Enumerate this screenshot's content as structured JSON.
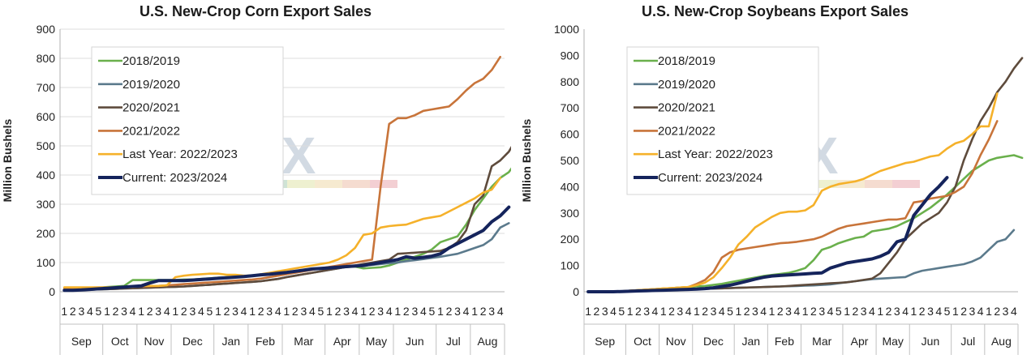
{
  "watermark_text": "neX",
  "chart_data": [
    {
      "type": "line",
      "title": "U.S. New-Crop Corn Export Sales",
      "ylabel": "Million Bushels",
      "xlabel": "",
      "ylim": [
        0,
        900
      ],
      "yticks": [
        "0",
        "100",
        "200",
        "300",
        "400",
        "500",
        "600",
        "700",
        "800",
        "900"
      ],
      "months": [
        "Sep",
        "Oct",
        "Nov",
        "Dec",
        "Jan",
        "Feb",
        "Mar",
        "Apr",
        "May",
        "Jun",
        "Jul",
        "Aug"
      ],
      "week_labels": [
        "1",
        "2",
        "3",
        "4",
        "5",
        "1",
        "2",
        "3",
        "4",
        "1",
        "2",
        "3",
        "4",
        "1",
        "2",
        "3",
        "4",
        "5",
        "1",
        "2",
        "3",
        "4",
        "1",
        "2",
        "3",
        "4",
        "1",
        "2",
        "3",
        "4",
        "5",
        "1",
        "2",
        "3",
        "4",
        "1",
        "2",
        "3",
        "4",
        "1",
        "2",
        "3",
        "4",
        "5",
        "1",
        "2",
        "3",
        "4",
        "1",
        "2",
        "3",
        "4"
      ],
      "month_week_counts": [
        5,
        4,
        4,
        5,
        4,
        4,
        5,
        4,
        4,
        5,
        4,
        4
      ],
      "grid": true,
      "legend_position": "top-left",
      "series": [
        {
          "name": "2018/2019",
          "color": "#6ab04c",
          "values": [
            10,
            10,
            10,
            12,
            14,
            16,
            18,
            20,
            40,
            40,
            40,
            40,
            40,
            40,
            42,
            42,
            44,
            46,
            48,
            50,
            52,
            54,
            56,
            58,
            60,
            62,
            66,
            70,
            74,
            78,
            80,
            82,
            84,
            85,
            86,
            80,
            82,
            84,
            90,
            100,
            110,
            120,
            130,
            145,
            170,
            180,
            190,
            230,
            280,
            320,
            360,
            390,
            410,
            450
          ]
        },
        {
          "name": "2019/2020",
          "color": "#5b7a8c",
          "values": [
            5,
            5,
            6,
            7,
            8,
            9,
            10,
            11,
            12,
            13,
            14,
            15,
            16,
            17,
            18,
            20,
            22,
            24,
            26,
            28,
            30,
            32,
            34,
            36,
            40,
            44,
            50,
            55,
            60,
            65,
            70,
            75,
            80,
            85,
            88,
            90,
            92,
            95,
            98,
            100,
            105,
            108,
            112,
            116,
            120,
            125,
            130,
            140,
            150,
            160,
            180,
            220,
            235
          ]
        },
        {
          "name": "2020/2021",
          "color": "#5e4b3c",
          "values": [
            5,
            5,
            6,
            7,
            8,
            9,
            10,
            11,
            12,
            13,
            14,
            15,
            16,
            17,
            18,
            20,
            22,
            24,
            26,
            28,
            30,
            32,
            34,
            36,
            40,
            44,
            50,
            55,
            60,
            65,
            70,
            75,
            80,
            85,
            90,
            95,
            100,
            105,
            110,
            130,
            132,
            134,
            136,
            138,
            140,
            150,
            170,
            210,
            300,
            330,
            430,
            450,
            480,
            530,
            620
          ]
        },
        {
          "name": "2021/2022",
          "color": "#c8743a",
          "values": [
            10,
            10,
            11,
            12,
            13,
            14,
            15,
            16,
            17,
            18,
            19,
            20,
            22,
            24,
            26,
            28,
            30,
            32,
            34,
            36,
            38,
            40,
            42,
            45,
            50,
            55,
            60,
            65,
            70,
            75,
            80,
            85,
            90,
            95,
            100,
            105,
            110,
            360,
            575,
            595,
            595,
            605,
            620,
            625,
            630,
            635,
            660,
            690,
            715,
            730,
            760,
            805
          ]
        },
        {
          "name": "Last Year: 2022/2023",
          "color": "#f5b12a",
          "values": [
            15,
            15,
            15,
            15,
            15,
            15,
            15,
            15,
            15,
            20,
            20,
            20,
            22,
            50,
            55,
            58,
            60,
            62,
            62,
            58,
            58,
            55,
            55,
            60,
            65,
            70,
            75,
            80,
            85,
            90,
            95,
            100,
            110,
            125,
            150,
            195,
            200,
            220,
            225,
            228,
            230,
            240,
            250,
            255,
            260,
            275,
            290,
            305,
            320,
            340,
            350,
            390
          ]
        },
        {
          "name": "Current: 2023/2024",
          "color": "#15245c",
          "values": [
            5,
            5,
            6,
            8,
            10,
            12,
            14,
            16,
            18,
            20,
            30,
            38,
            38,
            38,
            38,
            40,
            42,
            44,
            46,
            48,
            50,
            52,
            55,
            58,
            60,
            63,
            66,
            70,
            74,
            78,
            80,
            82,
            84,
            86,
            88,
            90,
            95,
            100,
            105,
            110,
            120,
            115,
            118,
            122,
            130,
            150,
            165,
            180,
            195,
            210,
            240,
            260,
            290
          ]
        }
      ]
    },
    {
      "type": "line",
      "title": "U.S. New-Crop Soybeans Export Sales",
      "ylabel": "Million Bushels",
      "xlabel": "",
      "ylim": [
        0,
        1000
      ],
      "yticks": [
        "0",
        "100",
        "200",
        "300",
        "400",
        "500",
        "600",
        "700",
        "800",
        "900",
        "1000"
      ],
      "months": [
        "Sep",
        "Oct",
        "Nov",
        "Dec",
        "Jan",
        "Feb",
        "Mar",
        "Apr",
        "May",
        "Jun",
        "Jul",
        "Aug"
      ],
      "week_labels": [
        "1",
        "2",
        "3",
        "4",
        "5",
        "1",
        "2",
        "3",
        "4",
        "1",
        "2",
        "3",
        "4",
        "1",
        "2",
        "3",
        "4",
        "5",
        "1",
        "2",
        "3",
        "4",
        "1",
        "2",
        "3",
        "4",
        "1",
        "2",
        "3",
        "4",
        "5",
        "1",
        "2",
        "3",
        "4",
        "1",
        "2",
        "3",
        "4",
        "1",
        "2",
        "3",
        "4",
        "5",
        "1",
        "2",
        "3",
        "4",
        "1",
        "2",
        "3",
        "4"
      ],
      "month_week_counts": [
        5,
        4,
        4,
        5,
        4,
        4,
        5,
        4,
        4,
        5,
        4,
        4
      ],
      "grid": false,
      "legend_position": "top-left",
      "series": [
        {
          "name": "2018/2019",
          "color": "#6ab04c",
          "values": [
            0,
            0,
            0,
            0,
            2,
            4,
            6,
            8,
            10,
            12,
            14,
            16,
            18,
            20,
            22,
            26,
            30,
            36,
            42,
            48,
            54,
            60,
            64,
            68,
            72,
            80,
            90,
            120,
            160,
            170,
            185,
            195,
            205,
            210,
            230,
            235,
            240,
            250,
            265,
            280,
            300,
            320,
            345,
            370,
            400,
            430,
            460,
            480,
            500,
            510,
            515,
            520,
            510
          ]
        },
        {
          "name": "2019/2020",
          "color": "#5b7a8c",
          "values": [
            0,
            0,
            0,
            0,
            1,
            2,
            3,
            4,
            5,
            6,
            7,
            8,
            9,
            10,
            11,
            12,
            13,
            14,
            15,
            16,
            17,
            18,
            19,
            20,
            21,
            22,
            23,
            24,
            26,
            28,
            32,
            36,
            40,
            44,
            48,
            50,
            52,
            54,
            56,
            70,
            80,
            85,
            90,
            95,
            100,
            105,
            115,
            130,
            160,
            190,
            200,
            235
          ]
        },
        {
          "name": "2020/2021",
          "color": "#5e4b3c",
          "values": [
            0,
            0,
            0,
            0,
            1,
            2,
            3,
            4,
            5,
            6,
            7,
            8,
            9,
            10,
            11,
            12,
            13,
            14,
            15,
            16,
            17,
            18,
            19,
            20,
            22,
            24,
            26,
            28,
            30,
            32,
            34,
            36,
            40,
            45,
            50,
            70,
            110,
            150,
            200,
            230,
            260,
            280,
            300,
            340,
            400,
            500,
            580,
            650,
            700,
            760,
            800,
            850,
            890
          ]
        },
        {
          "name": "2021/2022",
          "color": "#c8743a",
          "values": [
            0,
            0,
            0,
            0,
            2,
            4,
            6,
            8,
            10,
            12,
            14,
            16,
            18,
            30,
            45,
            75,
            130,
            150,
            160,
            165,
            170,
            175,
            180,
            185,
            187,
            190,
            195,
            200,
            210,
            225,
            240,
            250,
            255,
            260,
            265,
            270,
            275,
            275,
            280,
            340,
            345,
            355,
            360,
            365,
            380,
            400,
            450,
            520,
            580,
            650
          ]
        },
        {
          "name": "Last Year: 2022/2023",
          "color": "#f5b12a",
          "values": [
            0,
            0,
            0,
            0,
            2,
            4,
            6,
            8,
            10,
            12,
            14,
            16,
            18,
            25,
            35,
            55,
            90,
            130,
            180,
            210,
            245,
            265,
            285,
            300,
            305,
            305,
            310,
            330,
            385,
            400,
            410,
            415,
            420,
            430,
            445,
            460,
            470,
            480,
            490,
            495,
            505,
            515,
            520,
            545,
            565,
            575,
            600,
            630,
            630,
            755
          ]
        },
        {
          "name": "Current: 2023/2024",
          "color": "#15245c",
          "values": [
            0,
            0,
            0,
            0,
            1,
            2,
            3,
            4,
            5,
            6,
            7,
            8,
            9,
            10,
            12,
            15,
            20,
            25,
            32,
            40,
            48,
            55,
            60,
            62,
            64,
            66,
            68,
            70,
            72,
            90,
            100,
            110,
            115,
            120,
            125,
            135,
            150,
            190,
            200,
            290,
            330,
            370,
            400,
            435
          ]
        }
      ]
    }
  ]
}
